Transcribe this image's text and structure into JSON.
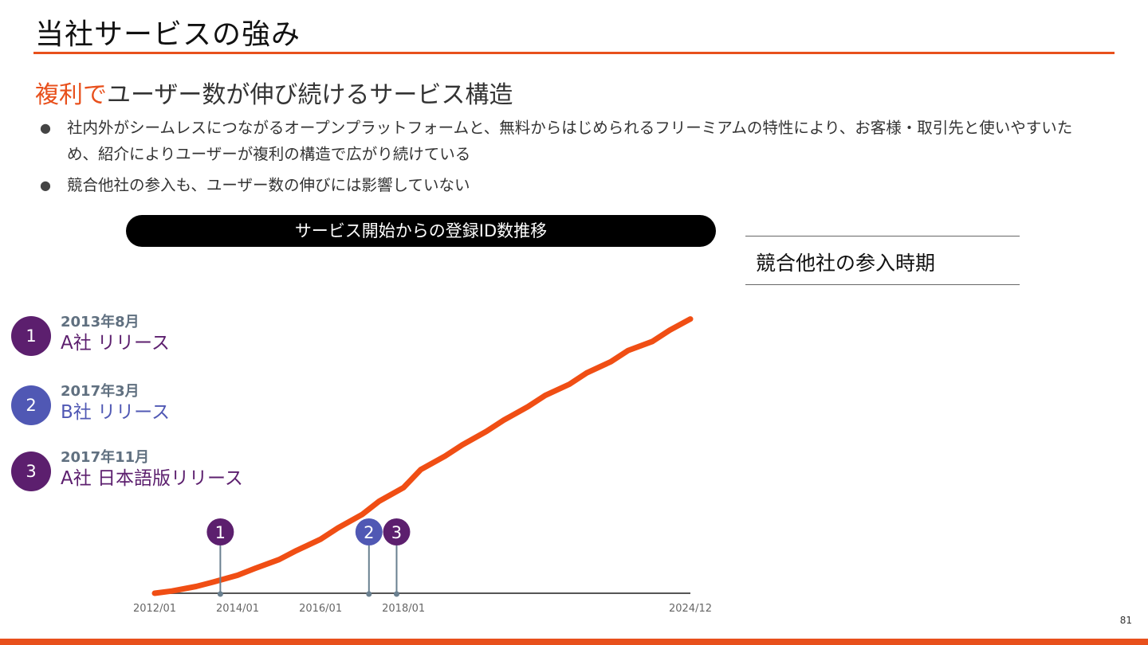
{
  "slide": {
    "title": "当社サービスの強み",
    "subtitle_accent": "複利で",
    "subtitle_rest": "ユーザー数が伸び続けるサービス構造",
    "bullets": [
      "社内外がシームレスにつながるオープンプラットフォームと、無料からはじめられるフリーミアムの特性により、お客様・取引先と使いやすいため、紹介によりユーザーが複利の構造で広がり続けている",
      "競合他社の参入も、ユーザー数の伸びには影響していない"
    ],
    "bullet_symbol": "●",
    "page_number": "81"
  },
  "colors": {
    "accent": "#e8501c",
    "line": "#f04e14",
    "marker_dark": "#5c1f6e",
    "marker_blue": "#5058b4",
    "marker_stem": "#6a8090"
  },
  "chart_data": {
    "type": "line",
    "title": "サービス開始からの登録ID数推移",
    "xlabel": "",
    "ylabel": "",
    "x_ticks": [
      "2012/01",
      "2014/01",
      "2016/01",
      "2018/01",
      "2024/12"
    ],
    "series": [
      {
        "x": [
          "2012/01",
          "2012/06",
          "2013/01",
          "2013/06",
          "2014/01",
          "2014/06",
          "2015/01",
          "2015/06",
          "2016/01",
          "2016/06",
          "2017/01",
          "2017/06",
          "2018/01",
          "2018/06",
          "2019/01",
          "2019/06",
          "2020/01",
          "2020/06",
          "2021/01",
          "2021/06",
          "2022/01",
          "2022/06",
          "2023/01",
          "2023/06",
          "2024/01",
          "2024/06",
          "2024/12"
        ],
        "y": [
          0,
          1,
          3,
          5,
          8,
          11,
          15,
          19,
          24,
          29,
          35,
          41,
          47,
          55,
          61,
          66,
          72,
          77,
          83,
          88,
          93,
          98,
          103,
          108,
          112,
          117,
          122
        ]
      }
    ],
    "ylim": [
      0,
      130
    ],
    "grid": false,
    "markers": [
      {
        "id": "1",
        "x": "2013/08",
        "color": "marker_dark"
      },
      {
        "id": "2",
        "x": "2017/03",
        "color": "marker_blue"
      },
      {
        "id": "3",
        "x": "2017/11",
        "color": "marker_dark"
      }
    ]
  },
  "competitors": {
    "heading": "競合他社の参入時期",
    "entries": [
      {
        "num": "1",
        "date": "2013年8月",
        "label": "A社 リリース",
        "color": "#5c1f6e"
      },
      {
        "num": "2",
        "date": "2017年3月",
        "label": "B社 リリース",
        "color": "#5058b4"
      },
      {
        "num": "3",
        "date": "2017年11月",
        "label": "A社 日本語版リリース",
        "color": "#5c1f6e"
      }
    ]
  }
}
